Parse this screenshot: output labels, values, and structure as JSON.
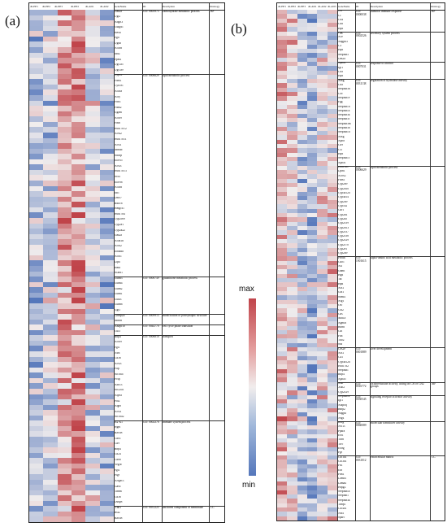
{
  "panels": [
    {
      "label": "(a)",
      "headers": [
        "db-HF1",
        "db-HF2",
        "db-HF3",
        "db-HF2",
        "db-AD1",
        "db-AD2",
        "GeneName",
        "ID",
        "Description",
        "Ontology"
      ],
      "groups": [
        {
          "id": "GO: 0005975",
          "desc": "carbohydrate metabolic process",
          "genes": [
            "Gm2a",
            "Ugt2",
            "Adgrl3",
            "Gulgd1",
            "Hexa",
            "Pgd",
            "Ugdh",
            "Acacb",
            "Idh2",
            "Ppm1",
            "Ugt1a5",
            "Ugt1a9"
          ],
          "ontology": "BP"
        },
        {
          "id": "GO: 0006629",
          "desc": "lipid metabolic process",
          "genes": [
            "Cyp51",
            "Fads1",
            "Cyb5r1",
            "Acaca",
            "Acly",
            "Fdft1",
            "Fads2",
            "Ggam",
            "Acot9",
            "Fasn",
            "Hsd17b12",
            "Acss2",
            "Hsd17b11",
            "Acsl1",
            "Mmab",
            "Sdcbp",
            "Elovl5",
            "Acsl3",
            "Hsd17b13",
            "Scd1",
            "Elovl6",
            "Acacb",
            "Idi1",
            "Dhcr7",
            "Rdh16",
            "Hmgcs1",
            "Hsd17b4",
            "Cyp2c69",
            "Cyp2e1",
            "Cyp2a22",
            "Gm2a",
            "Acaa1b",
            "Acot2",
            "Ehhadh",
            "Acot1",
            "Lipa",
            "Hmx",
            "Scarb1"
          ]
        },
        {
          "id": "GO: 0006749",
          "desc": "glutathione metabolic process",
          "genes": [
            "Gstm3",
            "Gstm4",
            "Gstm2",
            "Gstm1",
            "Gsta3",
            "Gstm6",
            "Ggt1"
          ]
        },
        {
          "id": "GO: 0009913",
          "desc": "modification of postsynaptic structure",
          "genes": [
            "Chmp2b",
            "Mmrn"
          ]
        },
        {
          "id": "GO: 0044770",
          "desc": "cell cycle phase transition",
          "genes": [
            "Anapc10",
            "Cul3"
          ]
        },
        {
          "id": "GO: 0006810",
          "desc": "transport",
          "genes": [
            "Rbp4",
            "Acot9",
            "Fgl1",
            "Nlrx",
            "Cd36",
            "Acsl3",
            "Pltp",
            "Slc16a7",
            "Pcsp",
            "Abcc3",
            "Slc25a1",
            "Atp9a",
            "Pla2",
            "Aqp8",
            "Acsl1",
            "Slc16a2"
          ]
        },
        {
          "id": "GO: 0002376",
          "desc": "immune system process",
          "genes": [
            "H2-K1",
            "Hgnt",
            "Ractl8",
            "Cd81",
            "Cd9",
            "Rbp4",
            "Cd24",
            "Cd68",
            "Vegfb",
            "Fgl1",
            "Pigr",
            "Arfgef3",
            "Gas6",
            "Timm",
            "Cd36",
            "Dusp8"
          ]
        },
        {
          "id": "GO: 0031225",
          "desc": "anchored component of membrane",
          "genes": [
            "Vnn1",
            "Bst2",
            "Ractl8"
          ],
          "ontology": "CC"
        }
      ]
    },
    {
      "label": "(b)",
      "headers": [
        "db-HF1",
        "db-HF2",
        "db-HF3",
        "db-AD1",
        "db-AD2",
        "db-AD3",
        "GeneName",
        "ID",
        "Description",
        "Ontology"
      ],
      "groups": [
        {
          "id": "GO: 0000038",
          "desc": "humoral immune response",
          "genes": [
            "Ccl",
            "Cf",
            "Ctss",
            "C8b",
            "Hpx"
          ],
          "ontology": "BP"
        },
        {
          "id": "GO: 0002526",
          "desc": "secretory system process",
          "genes": [
            "Fgg",
            "Ace",
            "Angptl3",
            "C3",
            "Hpx",
            "Serpina3",
            "Gm2a"
          ]
        },
        {
          "id": "GO: 0007031",
          "desc": "response to alcohol",
          "genes": [
            "Apoa1",
            "Igf1",
            "C8a",
            "Hpx"
          ]
        },
        {
          "id": "GO: 0031138",
          "desc": "regulation of hydrolase activity",
          "genes": [
            "Ahsg",
            "C8a",
            "Serpina3n",
            "Cfb",
            "Serpina1e",
            "Fgg",
            "Serpina1b",
            "Serpina1a",
            "Serpina3k",
            "Serpina3c",
            "Serpina3m",
            "Serpina3b",
            "Serpina1d",
            "Ahsg",
            "Apoh",
            "Cd9",
            "Ccl",
            "Hpx",
            "Serpina1c",
            "Apoa1"
          ]
        },
        {
          "id": "GO: 0006629",
          "desc": "lipid metabolic process",
          "genes": [
            "Hsd11b1",
            "Lpin1",
            "Acox2",
            "Fads1",
            "Cyp2b9",
            "Cyp2b10",
            "Cyp4a12a",
            "Cyp4a14",
            "Cyp2d9",
            "Cyp1a2",
            "Cbr1",
            "Cyp2a4",
            "Cyp2a5",
            "Cyp2c39",
            "Cyp2b13",
            "Cyp2c37",
            "Cyp2c38",
            "Cyp2c29",
            "Cyp2c70",
            "Cyp2e1",
            "Cyp2d9"
          ]
        },
        {
          "id": "GO: 1901615",
          "desc": "alpha-amino acid metabolic process",
          "genes": [
            "Prodh",
            "Cdo1",
            "Asl",
            "Gnmt",
            "Hgd",
            "Tat",
            "Hpd",
            "Ass1",
            "Got1",
            "Shmt1",
            "Arg1",
            "Otc",
            "Gls2",
            "Cbs",
            "Mat1a",
            "Agmat",
            "Bhmt",
            "Cth",
            "Fah",
            "Tdo2",
            "Sds"
          ]
        },
        {
          "id": "GO: 0001889",
          "desc": "liver development",
          "genes": [
            "Ces2e",
            "Ass1",
            "Ca3",
            "Cyp4a12a",
            "Hsd17b2",
            "Serpina1",
            "Rbp4",
            "Apoa5"
          ]
        },
        {
          "id": "GO: 0016772",
          "desc": "oxidoreductase activity, acting on CH or CH2 groups",
          "genes": [
            "Xdh",
            "Xdh2",
            "Cyp2c29"
          ],
          "ontology": "MF"
        },
        {
          "id": "GO: 0030545",
          "desc": "signaling receptor activator activity",
          "genes": [
            "Serpina1a",
            "Igf1",
            "Adipoq",
            "Bmp2",
            "Angptl",
            "Nrg4"
          ]
        },
        {
          "id": "GO: 0060089",
          "desc": "molecular transducer activity",
          "genes": [
            "Rxrg",
            "Nr1i3",
            "Ppara",
            "Esr1",
            "Thrb",
            "Tfrc",
            "Esrrg",
            "Pgr"
          ]
        },
        {
          "id": "GO: 0031012",
          "desc": "extracellular matrix",
          "genes": [
            "Col1a1",
            "Col3a1",
            "Fn1",
            "Eln",
            "Fbn1",
            "Lamb1",
            "Lama4",
            "Hspg2",
            "Serpina1a",
            "Serpinh1",
            "Serpina3k",
            "Timp1",
            "Col4a1",
            "Nid1",
            "Sparc"
          ],
          "ontology": "CC"
        }
      ]
    }
  ],
  "colorbar": {
    "max_label": "max",
    "min_label": "min",
    "high_color": "#c0444a",
    "mid_color": "#f1eded",
    "low_color": "#5577bb"
  }
}
